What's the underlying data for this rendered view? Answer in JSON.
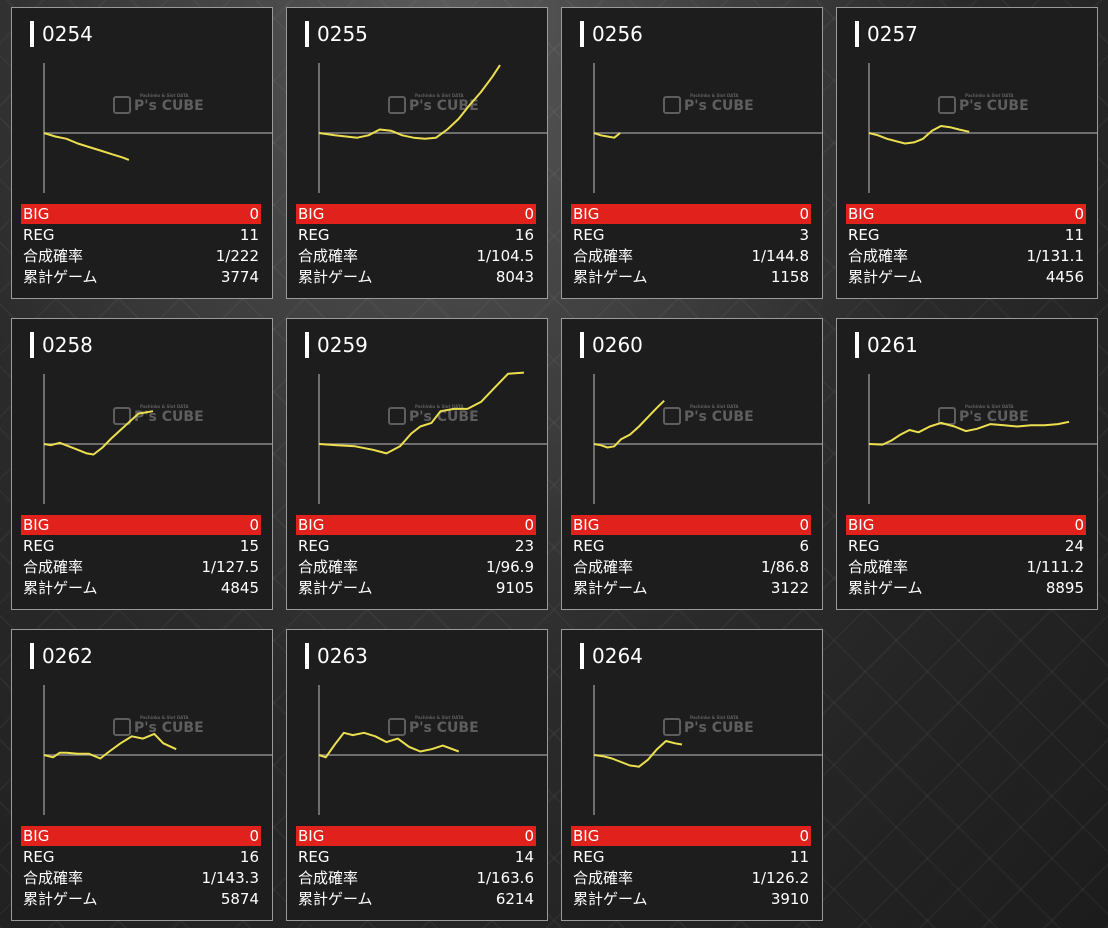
{
  "labels": {
    "big": "BIG",
    "reg": "REG",
    "rate": "合成確率",
    "games": "累計ゲーム"
  },
  "watermark": {
    "text": "P's CUBE",
    "tagline": "Pachinko & Slot DATA"
  },
  "colors": {
    "big_bar": "#e1211b",
    "line": "#ecdf4f",
    "baseline": "#8a8a8a",
    "axis": "#8a8a8a",
    "card_bg": "#1d1d1d",
    "card_border": "#9a9a9a"
  },
  "machines": [
    {
      "id": "0254",
      "big": "0",
      "reg": "11",
      "rate": "1/222",
      "games": "3774",
      "chart_data": {
        "type": "line",
        "x": [
          0,
          500,
          1000,
          1500,
          2000,
          2500,
          3000,
          3500,
          3774
        ],
        "y": [
          0,
          -300,
          -500,
          -900,
          -1200,
          -1500,
          -1800,
          -2100,
          -2300
        ]
      }
    },
    {
      "id": "0255",
      "big": "0",
      "reg": "16",
      "rate": "1/104.5",
      "games": "8043",
      "chart_data": {
        "type": "line",
        "x": [
          0,
          700,
          1200,
          1700,
          2200,
          2700,
          3200,
          3700,
          4200,
          4700,
          5200,
          5700,
          6200,
          6700,
          7200,
          7700,
          8043
        ],
        "y": [
          0,
          -200,
          -300,
          -400,
          -200,
          300,
          200,
          -200,
          -400,
          -500,
          -400,
          300,
          1200,
          2400,
          3500,
          4800,
          5800
        ]
      }
    },
    {
      "id": "0256",
      "big": "0",
      "reg": "3",
      "rate": "1/144.8",
      "games": "1158",
      "chart_data": {
        "type": "line",
        "x": [
          0,
          300,
          600,
          900,
          1158
        ],
        "y": [
          0,
          -200,
          -300,
          -400,
          0
        ]
      }
    },
    {
      "id": "0257",
      "big": "0",
      "reg": "11",
      "rate": "1/131.1",
      "games": "4456",
      "chart_data": {
        "type": "line",
        "x": [
          0,
          400,
          800,
          1200,
          1600,
          2000,
          2400,
          2800,
          3200,
          3600,
          4000,
          4456
        ],
        "y": [
          0,
          -200,
          -500,
          -700,
          -900,
          -800,
          -500,
          200,
          600,
          500,
          300,
          100
        ]
      }
    },
    {
      "id": "0258",
      "big": "0",
      "reg": "15",
      "rate": "1/127.5",
      "games": "4845",
      "chart_data": {
        "type": "line",
        "x": [
          0,
          300,
          700,
          1100,
          1500,
          1900,
          2200,
          2600,
          3000,
          3400,
          3800,
          4200,
          4845
        ],
        "y": [
          0,
          -100,
          100,
          -200,
          -500,
          -800,
          -900,
          -300,
          500,
          1200,
          1900,
          2600,
          2800
        ]
      }
    },
    {
      "id": "0259",
      "big": "0",
      "reg": "23",
      "rate": "1/96.9",
      "games": "9105",
      "chart_data": {
        "type": "line",
        "x": [
          0,
          800,
          1600,
          2400,
          3000,
          3600,
          4100,
          4500,
          5000,
          5400,
          6000,
          6600,
          7200,
          7800,
          8400,
          9105
        ],
        "y": [
          0,
          -100,
          -200,
          -500,
          -800,
          -200,
          900,
          1500,
          1800,
          2800,
          3000,
          3000,
          3600,
          4800,
          6000,
          6100
        ]
      }
    },
    {
      "id": "0260",
      "big": "0",
      "reg": "6",
      "rate": "1/86.8",
      "games": "3122",
      "chart_data": {
        "type": "line",
        "x": [
          0,
          300,
          600,
          900,
          1200,
          1600,
          2000,
          2400,
          2800,
          3122
        ],
        "y": [
          0,
          -100,
          -300,
          -200,
          400,
          800,
          1500,
          2300,
          3100,
          3700
        ]
      }
    },
    {
      "id": "0261",
      "big": "0",
      "reg": "24",
      "rate": "1/111.2",
      "games": "8895",
      "chart_data": {
        "type": "line",
        "x": [
          0,
          600,
          1000,
          1400,
          1800,
          2200,
          2700,
          3200,
          3800,
          4300,
          4800,
          5400,
          6000,
          6600,
          7200,
          7800,
          8400,
          8895
        ],
        "y": [
          0,
          -50,
          300,
          800,
          1200,
          1000,
          1500,
          1800,
          1500,
          1100,
          1300,
          1700,
          1600,
          1500,
          1600,
          1600,
          1700,
          1900
        ]
      }
    },
    {
      "id": "0262",
      "big": "0",
      "reg": "16",
      "rate": "1/143.3",
      "games": "5874",
      "chart_data": {
        "type": "line",
        "x": [
          0,
          400,
          700,
          1000,
          1500,
          2000,
          2500,
          2900,
          3400,
          3900,
          4400,
          4900,
          5300,
          5874
        ],
        "y": [
          0,
          -200,
          200,
          200,
          100,
          100,
          -300,
          300,
          1000,
          1600,
          1400,
          1800,
          1000,
          500
        ]
      }
    },
    {
      "id": "0263",
      "big": "0",
      "reg": "14",
      "rate": "1/163.6",
      "games": "6214",
      "chart_data": {
        "type": "line",
        "x": [
          0,
          300,
          700,
          1100,
          1500,
          2000,
          2500,
          3000,
          3500,
          4000,
          4500,
          5000,
          5500,
          6214
        ],
        "y": [
          0,
          -200,
          900,
          1900,
          1700,
          1900,
          1600,
          1100,
          1400,
          700,
          300,
          500,
          800,
          300
        ]
      }
    },
    {
      "id": "0264",
      "big": "0",
      "reg": "11",
      "rate": "1/126.2",
      "games": "3910",
      "chart_data": {
        "type": "line",
        "x": [
          0,
          400,
          800,
          1200,
          1600,
          2000,
          2400,
          2800,
          3200,
          3600,
          3910
        ],
        "y": [
          0,
          -100,
          -300,
          -600,
          -900,
          -1000,
          -400,
          500,
          1200,
          1000,
          900
        ]
      }
    }
  ]
}
